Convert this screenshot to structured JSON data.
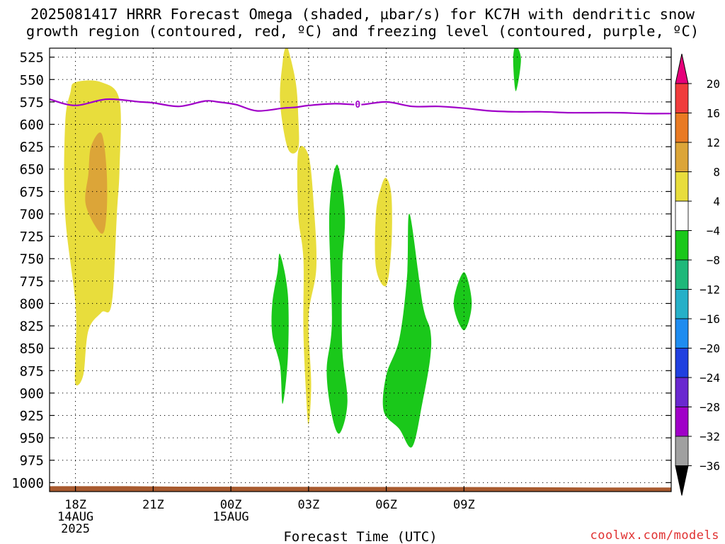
{
  "title": {
    "line1": "2025081417 HRRR Forecast Omega (shaded, µbar/s) for KC7H with dendritic snow",
    "line2": "growth region (contoured, red, ºC) and freezing level (contoured, purple, ºC)"
  },
  "credit": "coolwx.com/models",
  "chart_data": {
    "type": "heatmap",
    "xlabel": "Forecast Time (UTC)",
    "ylabel": "",
    "x_range_hours": [
      17,
      41
    ],
    "y_range_mb": [
      515,
      1010
    ],
    "x_ticks": [
      {
        "hour": 18,
        "lines": [
          "18Z",
          "14AUG",
          "2025"
        ]
      },
      {
        "hour": 21,
        "lines": [
          "21Z"
        ]
      },
      {
        "hour": 24,
        "lines": [
          "00Z",
          "15AUG"
        ]
      },
      {
        "hour": 27,
        "lines": [
          "03Z"
        ]
      },
      {
        "hour": 30,
        "lines": [
          "06Z"
        ]
      },
      {
        "hour": 33,
        "lines": [
          "09Z"
        ]
      }
    ],
    "y_ticks": [
      525,
      550,
      575,
      600,
      625,
      650,
      675,
      700,
      725,
      750,
      775,
      800,
      825,
      850,
      875,
      900,
      925,
      950,
      975,
      1000
    ],
    "grid": true,
    "freezing_level": {
      "color": "#a000c8",
      "label": "0",
      "label_hour": 28.9,
      "points": [
        [
          17.0,
          572
        ],
        [
          18.0,
          579
        ],
        [
          19.2,
          572
        ],
        [
          20.5,
          575
        ],
        [
          21.0,
          576
        ],
        [
          22.0,
          580
        ],
        [
          23.0,
          574
        ],
        [
          23.5,
          575
        ],
        [
          24.2,
          578
        ],
        [
          25.0,
          585
        ],
        [
          26.0,
          582
        ],
        [
          26.5,
          581
        ],
        [
          27.0,
          579
        ],
        [
          28.0,
          577
        ],
        [
          29.0,
          578
        ],
        [
          30.0,
          575
        ],
        [
          31.0,
          580
        ],
        [
          32.0,
          580
        ],
        [
          33.0,
          582
        ],
        [
          34.0,
          585
        ],
        [
          35.0,
          586
        ],
        [
          36.0,
          586
        ],
        [
          37.0,
          587
        ],
        [
          38.0,
          587
        ],
        [
          39.0,
          587
        ],
        [
          40.0,
          588
        ],
        [
          41.0,
          588
        ]
      ]
    },
    "colorbar": {
      "labels": [
        20,
        16,
        12,
        8,
        4,
        -4,
        -8,
        -12,
        -16,
        -20,
        -24,
        -28,
        -32,
        -36
      ],
      "colors": [
        "#e6007a",
        "#f03c3c",
        "#e97a23",
        "#dca538",
        "#e8dd3c",
        "#ffffff",
        "#1ac81a",
        "#1fb87a",
        "#26b0c8",
        "#1e8cf0",
        "#2040e0",
        "#6a28d0",
        "#a000c8",
        "#a0a0a0",
        "#000000"
      ]
    },
    "omega_regions": [
      {
        "value": 6,
        "color": "#e8dd3c",
        "points": [
          [
            18.0,
            855
          ],
          [
            18.0,
            800
          ],
          [
            17.6,
            700
          ],
          [
            17.6,
            600
          ],
          [
            17.8,
            565
          ],
          [
            18.0,
            553
          ],
          [
            19.0,
            553
          ],
          [
            19.7,
            573
          ],
          [
            19.7,
            650
          ],
          [
            19.6,
            700
          ],
          [
            19.4,
            800
          ],
          [
            19.0,
            810
          ],
          [
            18.5,
            830
          ],
          [
            18.3,
            880
          ],
          [
            18.0,
            890
          ]
        ]
      },
      {
        "value": 10,
        "color": "#dca538",
        "points": [
          [
            18.6,
            625
          ],
          [
            19.0,
            610
          ],
          [
            19.2,
            650
          ],
          [
            19.2,
            700
          ],
          [
            19.0,
            722
          ],
          [
            18.4,
            690
          ],
          [
            18.5,
            655
          ]
        ]
      },
      {
        "value": 6,
        "color": "#e8dd3c",
        "points": [
          [
            26.2,
            515
          ],
          [
            26.5,
            552
          ],
          [
            26.6,
            590
          ],
          [
            26.6,
            627
          ],
          [
            26.2,
            627
          ],
          [
            25.9,
            575
          ],
          [
            26.0,
            530
          ],
          [
            26.1,
            515
          ]
        ]
      },
      {
        "value": 6,
        "color": "#e8dd3c",
        "points": [
          [
            26.6,
            630
          ],
          [
            27.0,
            635
          ],
          [
            27.2,
            690
          ],
          [
            27.3,
            760
          ],
          [
            27.0,
            815
          ],
          [
            27.1,
            890
          ],
          [
            27.0,
            935
          ],
          [
            26.9,
            900
          ],
          [
            26.8,
            830
          ],
          [
            26.8,
            750
          ],
          [
            26.6,
            700
          ]
        ]
      },
      {
        "value": 6,
        "color": "#e8dd3c",
        "points": [
          [
            30.0,
            660
          ],
          [
            30.2,
            680
          ],
          [
            30.2,
            735
          ],
          [
            30.0,
            780
          ],
          [
            29.6,
            760
          ],
          [
            29.6,
            700
          ],
          [
            29.8,
            670
          ]
        ]
      },
      {
        "value": -6,
        "color": "#1ac81a",
        "points": [
          [
            25.9,
            745
          ],
          [
            26.2,
            790
          ],
          [
            26.2,
            860
          ],
          [
            26.0,
            912
          ],
          [
            25.9,
            870
          ],
          [
            25.6,
            835
          ],
          [
            25.6,
            800
          ],
          [
            25.8,
            765
          ]
        ]
      },
      {
        "value": -6,
        "color": "#1ac81a",
        "points": [
          [
            28.1,
            645
          ],
          [
            28.4,
            700
          ],
          [
            28.3,
            760
          ],
          [
            28.3,
            850
          ],
          [
            28.5,
            910
          ],
          [
            28.2,
            945
          ],
          [
            27.9,
            925
          ],
          [
            27.7,
            875
          ],
          [
            27.9,
            820
          ],
          [
            27.8,
            700
          ]
        ]
      },
      {
        "value": -6,
        "color": "#1ac81a",
        "points": [
          [
            30.9,
            700
          ],
          [
            31.4,
            800
          ],
          [
            31.7,
            830
          ],
          [
            31.7,
            860
          ],
          [
            31.4,
            910
          ],
          [
            31.0,
            960
          ],
          [
            30.5,
            940
          ],
          [
            29.9,
            920
          ],
          [
            30.0,
            880
          ],
          [
            30.5,
            840
          ],
          [
            30.8,
            770
          ]
        ]
      },
      {
        "value": -6,
        "color": "#1ac81a",
        "points": [
          [
            33.0,
            765
          ],
          [
            33.3,
            800
          ],
          [
            33.0,
            830
          ],
          [
            32.6,
            800
          ]
        ]
      },
      {
        "value": -6,
        "color": "#1ac81a",
        "points": [
          [
            35.0,
            512
          ],
          [
            35.2,
            528
          ],
          [
            35.0,
            563
          ],
          [
            34.9,
            528
          ]
        ]
      }
    ],
    "terrain": {
      "color": "#a85a2e",
      "pressure_mb": 1005,
      "points": [
        [
          17.0,
          1004
        ],
        [
          20.0,
          1004
        ],
        [
          22.0,
          1004.5
        ],
        [
          35.0,
          1005
        ],
        [
          38.0,
          1005.5
        ],
        [
          41.0,
          1005.5
        ]
      ]
    }
  }
}
